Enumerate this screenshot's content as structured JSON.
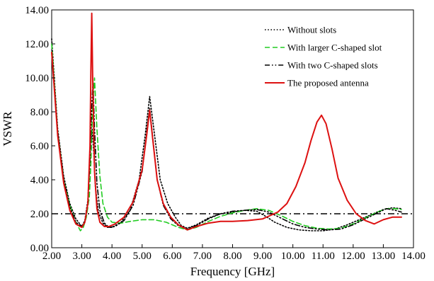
{
  "chart_data": {
    "type": "line",
    "title": "",
    "xlabel": "Frequency [GHz]",
    "ylabel": "VSWR",
    "xlim": [
      2.0,
      14.0
    ],
    "ylim": [
      0.0,
      14.0
    ],
    "x_ticks": [
      2,
      3,
      4,
      5,
      6,
      7,
      8,
      9,
      10,
      11,
      12,
      13,
      14
    ],
    "x_tick_labels": [
      "2.00",
      "3.00",
      "4.00",
      "5.00",
      "6.00",
      "7.00",
      "8.00",
      "9.00",
      "10.00",
      "11.00",
      "12.00",
      "13.00",
      "14.00"
    ],
    "y_ticks": [
      0,
      2,
      4,
      6,
      8,
      10,
      12,
      14
    ],
    "y_tick_labels": [
      "0.00",
      "2.00",
      "4.00",
      "6.00",
      "8.00",
      "10.00",
      "12.00",
      "14.00"
    ],
    "grid": false,
    "legend_position": "top-right",
    "reference_line": {
      "y": 2.0,
      "style": "dash-dot",
      "color": "#000000"
    },
    "series": [
      {
        "name": "Without slots",
        "color": "#000000",
        "dash": "dot",
        "x": [
          2.0,
          2.2,
          2.4,
          2.6,
          2.8,
          3.0,
          3.1,
          3.2,
          3.28,
          3.34,
          3.4,
          3.45,
          3.55,
          3.7,
          3.85,
          4.0,
          4.3,
          4.6,
          4.9,
          5.1,
          5.25,
          5.4,
          5.6,
          5.85,
          6.1,
          6.3,
          6.5,
          6.8,
          7.2,
          7.6,
          8.0,
          8.4,
          8.8,
          9.1,
          9.4,
          9.8,
          10.2,
          10.6,
          11.0,
          11.4,
          11.8,
          12.2,
          12.6,
          13.0,
          13.3,
          13.6
        ],
        "y": [
          12.3,
          7.0,
          4.2,
          2.6,
          1.7,
          1.25,
          1.6,
          2.8,
          6.0,
          7.0,
          5.5,
          3.6,
          2.1,
          1.45,
          1.2,
          1.2,
          1.5,
          2.2,
          4.0,
          6.6,
          8.9,
          6.8,
          4.0,
          2.6,
          1.8,
          1.3,
          1.15,
          1.35,
          1.75,
          2.0,
          2.1,
          2.2,
          2.15,
          1.85,
          1.5,
          1.2,
          1.05,
          1.0,
          1.0,
          1.1,
          1.35,
          1.65,
          1.95,
          2.25,
          2.35,
          2.3
        ]
      },
      {
        "name": "With larger C-shaped slot",
        "color": "#22cc22",
        "dash": "dash",
        "x": [
          2.0,
          2.2,
          2.4,
          2.6,
          2.8,
          2.95,
          3.05,
          3.15,
          3.25,
          3.3,
          3.35,
          3.42,
          3.5,
          3.6,
          3.7,
          3.85,
          4.0,
          4.3,
          4.6,
          5.0,
          5.4,
          5.8,
          6.2,
          6.5,
          6.8,
          7.2,
          7.6,
          8.0,
          8.4,
          8.8,
          9.2,
          9.6,
          10.0,
          10.4,
          10.8,
          11.2,
          11.6,
          12.0,
          12.4,
          12.8,
          13.1,
          13.4,
          13.6
        ],
        "y": [
          12.0,
          6.8,
          4.0,
          2.5,
          1.5,
          1.0,
          1.2,
          1.8,
          3.0,
          5.0,
          8.0,
          10.0,
          7.0,
          4.2,
          2.6,
          1.8,
          1.5,
          1.45,
          1.55,
          1.65,
          1.65,
          1.5,
          1.2,
          1.05,
          1.2,
          1.55,
          1.85,
          2.05,
          2.2,
          2.3,
          2.2,
          1.9,
          1.55,
          1.3,
          1.15,
          1.1,
          1.15,
          1.4,
          1.75,
          2.1,
          2.3,
          2.3,
          2.25
        ]
      },
      {
        "name": "With two C-shaped slots",
        "color": "#000000",
        "dash": "dash-dot-dot",
        "x": [
          2.0,
          2.2,
          2.4,
          2.6,
          2.8,
          3.0,
          3.1,
          3.2,
          3.28,
          3.32,
          3.37,
          3.42,
          3.5,
          3.6,
          3.75,
          3.9,
          4.1,
          4.4,
          4.7,
          5.0,
          5.15,
          5.25,
          5.35,
          5.5,
          5.7,
          5.95,
          6.2,
          6.5,
          6.8,
          7.2,
          7.6,
          8.0,
          8.4,
          8.8,
          9.2,
          9.6,
          10.0,
          10.4,
          10.8,
          11.2,
          11.6,
          12.0,
          12.4,
          12.8,
          13.1,
          13.4,
          13.6
        ],
        "y": [
          11.5,
          6.8,
          4.0,
          2.4,
          1.5,
          1.25,
          1.5,
          2.6,
          5.5,
          8.0,
          9.8,
          7.0,
          3.8,
          2.2,
          1.45,
          1.2,
          1.25,
          1.6,
          2.5,
          4.5,
          6.8,
          8.2,
          6.5,
          4.0,
          2.5,
          1.7,
          1.3,
          1.1,
          1.3,
          1.7,
          2.0,
          2.15,
          2.2,
          2.25,
          2.1,
          1.75,
          1.4,
          1.2,
          1.1,
          1.05,
          1.1,
          1.35,
          1.7,
          2.05,
          2.3,
          2.2,
          2.1
        ]
      },
      {
        "name": "The proposed antenna",
        "color": "#dd1111",
        "dash": "solid",
        "x": [
          2.0,
          2.2,
          2.4,
          2.6,
          2.8,
          3.0,
          3.1,
          3.2,
          3.27,
          3.3,
          3.33,
          3.36,
          3.42,
          3.5,
          3.6,
          3.75,
          3.9,
          4.1,
          4.4,
          4.7,
          5.0,
          5.15,
          5.25,
          5.35,
          5.5,
          5.7,
          5.95,
          6.2,
          6.5,
          6.8,
          7.2,
          7.6,
          8.0,
          8.5,
          9.0,
          9.5,
          9.8,
          10.1,
          10.4,
          10.6,
          10.8,
          10.95,
          11.1,
          11.3,
          11.5,
          11.8,
          12.1,
          12.4,
          12.7,
          13.0,
          13.3,
          13.6
        ],
        "y": [
          11.5,
          6.6,
          3.8,
          2.2,
          1.4,
          1.2,
          1.5,
          2.6,
          6.0,
          10.5,
          13.8,
          10.0,
          4.5,
          2.3,
          1.5,
          1.25,
          1.25,
          1.4,
          1.8,
          2.7,
          4.6,
          6.6,
          8.1,
          6.4,
          4.0,
          2.6,
          1.8,
          1.35,
          1.05,
          1.25,
          1.45,
          1.55,
          1.55,
          1.6,
          1.7,
          2.1,
          2.6,
          3.6,
          5.0,
          6.3,
          7.4,
          7.8,
          7.3,
          5.8,
          4.1,
          2.8,
          2.0,
          1.6,
          1.4,
          1.65,
          1.8,
          1.8
        ]
      }
    ]
  }
}
